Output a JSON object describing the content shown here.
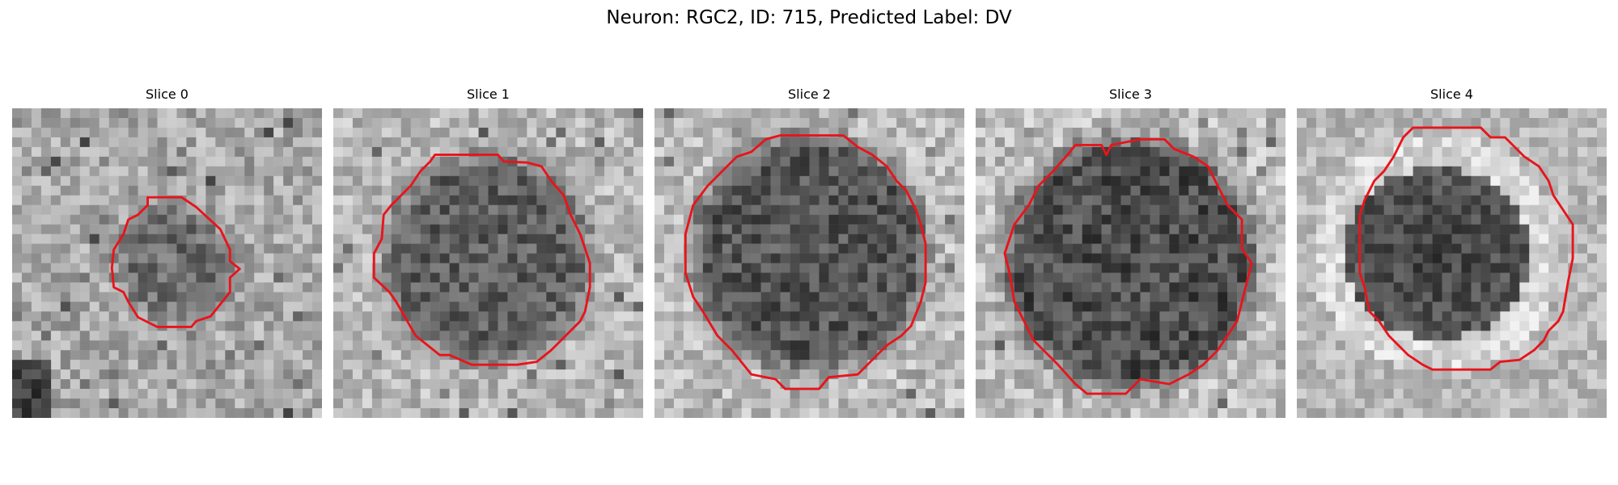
{
  "figure": {
    "title": "Neuron: RGC2, ID: 715, Predicted Label: DV"
  },
  "panels": [
    {
      "title": "Slice 0",
      "kind": "small",
      "seed": 11
    },
    {
      "title": "Slice 1",
      "kind": "medium",
      "seed": 23
    },
    {
      "title": "Slice 2",
      "kind": "large",
      "seed": 37
    },
    {
      "title": "Slice 3",
      "kind": "largest",
      "seed": 51
    },
    {
      "title": "Slice 4",
      "kind": "ring",
      "seed": 67
    }
  ],
  "colors": {
    "contour": "#e8141b",
    "background": "#ffffff"
  }
}
